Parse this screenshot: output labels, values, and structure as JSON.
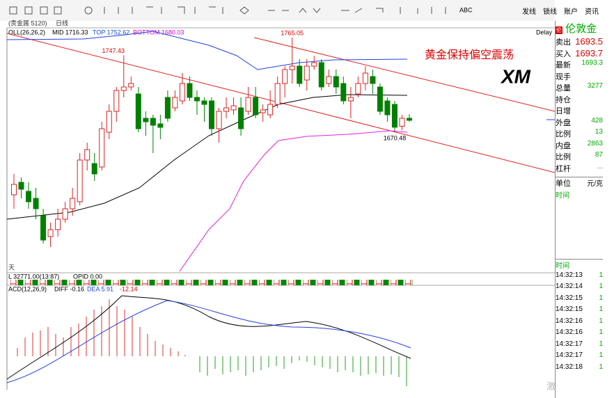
{
  "toolbar": {
    "buttons": [
      "发线",
      "锁线",
      "账户",
      "资讯"
    ],
    "abc": "ABC"
  },
  "main": {
    "instrument": "(贵金属 5120)",
    "period": "日线",
    "indicator": "OLL(26,26,2)",
    "mid": "MID 1716.33",
    "top": "TOP 1752.62",
    "bottom": "BOTTOM 1680.03",
    "delay": "Delay",
    "headline": "黄金保持偏空震荡",
    "logo": "XM",
    "high_label": "1765.05",
    "peak_label": "1747.43",
    "low_label": "1670.48",
    "side_label": "天",
    "ylim": [
      1530,
      1775
    ],
    "candles": [
      [
        1607,
        1617.5,
        1628,
        1593
      ],
      [
        1619.6,
        1612.6,
        1624.5,
        1603.5
      ],
      [
        1610.5,
        1600,
        1619.6,
        1593
      ],
      [
        1603.5,
        1593,
        1614,
        1582.5
      ],
      [
        1586,
        1561.5,
        1593,
        1558
      ],
      [
        1565,
        1572,
        1579,
        1554.5
      ],
      [
        1572,
        1582.5,
        1593,
        1565
      ],
      [
        1582.5,
        1593,
        1600,
        1579
      ],
      [
        1593,
        1603.5,
        1614,
        1586
      ],
      [
        1600,
        1642,
        1649,
        1596.5
      ],
      [
        1642,
        1652.5,
        1659.5,
        1631.5
      ],
      [
        1638.5,
        1628,
        1649,
        1621
      ],
      [
        1635,
        1673.5,
        1680.5,
        1631.5
      ],
      [
        1670,
        1691,
        1698,
        1663
      ],
      [
        1691,
        1712,
        1715.5,
        1680.5
      ],
      [
        1712,
        1715.5,
        1747.43,
        1705
      ],
      [
        1715.5,
        1719,
        1726,
        1712
      ],
      [
        1708.5,
        1673.5,
        1715.5,
        1670
      ],
      [
        1684,
        1680.5,
        1691,
        1666.5
      ],
      [
        1684,
        1677,
        1687.5,
        1649
      ],
      [
        1678.4,
        1674.9,
        1687.5,
        1663
      ],
      [
        1705,
        1684,
        1712,
        1680.5
      ],
      [
        1694.5,
        1705,
        1712,
        1691
      ],
      [
        1701.5,
        1719,
        1729.5,
        1698
      ],
      [
        1719,
        1705,
        1726,
        1701.5
      ],
      [
        1705,
        1701.5,
        1712,
        1687.5
      ],
      [
        1701.5,
        1698,
        1705,
        1680.5
      ],
      [
        1701.5,
        1673.5,
        1705,
        1666.5
      ],
      [
        1673.5,
        1691,
        1694.5,
        1659.5
      ],
      [
        1691,
        1694.5,
        1705,
        1684
      ],
      [
        1692.4,
        1696.6,
        1705,
        1687.5
      ],
      [
        1694.5,
        1673.5,
        1705,
        1666.5
      ],
      [
        1691,
        1705,
        1715.5,
        1687.5
      ],
      [
        1705,
        1687.5,
        1715.5,
        1684
      ],
      [
        1689.6,
        1692.4,
        1698,
        1680.5
      ],
      [
        1687.5,
        1698,
        1712,
        1684
      ],
      [
        1698,
        1719,
        1726,
        1694.5
      ],
      [
        1719,
        1733,
        1736.5,
        1705
      ],
      [
        1733,
        1736.5,
        1765.05,
        1719
      ],
      [
        1736.5,
        1719,
        1743.5,
        1715.5
      ],
      [
        1722.5,
        1736.5,
        1743.5,
        1712
      ],
      [
        1736.5,
        1740,
        1747,
        1733
      ],
      [
        1740,
        1715.5,
        1743.5,
        1712
      ],
      [
        1719,
        1726,
        1733,
        1715.5
      ],
      [
        1726,
        1715.5,
        1733,
        1708.5
      ],
      [
        1719,
        1701.5,
        1726,
        1698
      ],
      [
        1701.5,
        1705,
        1715.5,
        1684
      ],
      [
        1708.5,
        1719,
        1726,
        1705
      ],
      [
        1719,
        1729.5,
        1736.5,
        1712
      ],
      [
        1726,
        1719,
        1733,
        1708.5
      ],
      [
        1715.5,
        1691,
        1719,
        1687.5
      ],
      [
        1701.5,
        1687.5,
        1705,
        1680.5
      ],
      [
        1698,
        1675,
        1701.5,
        1670.48
      ],
      [
        1676,
        1684,
        1687.5,
        1672
      ],
      [
        1684,
        1682,
        1688,
        1680.5
      ]
    ]
  },
  "volume": {
    "label": "L 32771.00(13:87)",
    "opid": "OPID 0.00"
  },
  "macd": {
    "label": "ACD(12,26,9)",
    "diff": "DIFF -0.16",
    "dea": "DEA 5.91",
    "macd": "-12.14"
  },
  "quote": {
    "name": "伦敦金",
    "rows": [
      [
        "卖出",
        "1693.5"
      ],
      [
        "买入",
        "1693.7"
      ],
      [
        "最新",
        "1693.3"
      ],
      [
        "现手",
        ""
      ],
      [
        "总量",
        "3277"
      ],
      [
        "持仓",
        ""
      ],
      [
        "日增",
        ""
      ],
      [
        "外盘",
        "428"
      ],
      [
        "比例",
        "13"
      ],
      [
        "内盘",
        "2863"
      ],
      [
        "比例",
        "87"
      ],
      [
        "杠杆",
        "..."
      ]
    ]
  },
  "unit": {
    "label": "单位",
    "value": "元/克"
  },
  "time": {
    "label": "时间"
  },
  "ticks": {
    "label": "时间",
    "rows": [
      [
        "14:32:13",
        "1"
      ],
      [
        "14:32:14",
        "1"
      ],
      [
        "14:32:15",
        "1"
      ],
      [
        "14:32:15",
        "1"
      ],
      [
        "14:32:16",
        "1"
      ],
      [
        "14:32:16",
        "1"
      ],
      [
        "14:32:17",
        "1"
      ],
      [
        "14:32:17",
        "1"
      ],
      [
        "14:32:18",
        "1"
      ]
    ]
  },
  "watermark": "激活 Windows"
}
